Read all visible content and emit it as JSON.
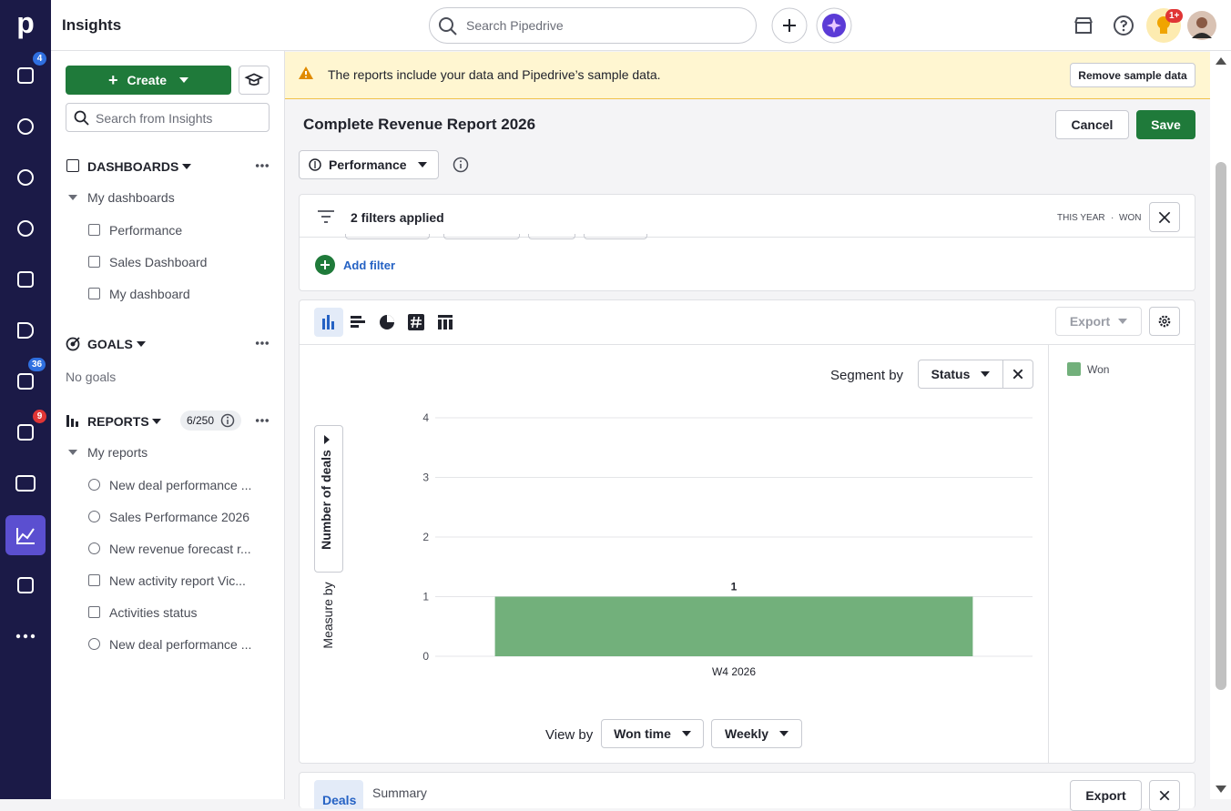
{
  "nav": {
    "logo": "p",
    "badges": [
      "4",
      "36",
      "9"
    ]
  },
  "header": {
    "title": "Insights",
    "search_placeholder": "Search Pipedrive",
    "notification_badge": "1+"
  },
  "sidebar": {
    "create": "Create",
    "search_placeholder": "Search from Insights",
    "dashboards": {
      "title": "DASHBOARDS",
      "group": "My dashboards",
      "items": [
        "Performance",
        "Sales Dashboard",
        "My dashboard"
      ]
    },
    "goals": {
      "title": "GOALS",
      "empty": "No goals"
    },
    "reports": {
      "title": "REPORTS",
      "count": "6/250",
      "group": "My reports",
      "items": [
        "New deal performance ...",
        "Sales Performance 2026",
        "New revenue forecast r...",
        "New activity report Vic...",
        "Activities status",
        "New deal performance ..."
      ]
    }
  },
  "banner": {
    "text": "The reports include your data and Pipedrive’s sample data.",
    "button": "Remove sample data"
  },
  "report": {
    "title": "Complete Revenue Report 2026",
    "cancel": "Cancel",
    "save": "Save",
    "dashboard_select": "Performance",
    "filters": {
      "summary": "2 filters applied",
      "tags": [
        "THIS YEAR",
        "WON"
      ],
      "add": "Add filter"
    },
    "export": "Export",
    "segment_label": "Segment by",
    "segment_value": "Status",
    "measure_label": "Measure by",
    "view_label": "View by",
    "view_field": "Won time",
    "view_interval": "Weekly",
    "tabs": [
      "Deals",
      "Summary"
    ],
    "table_export": "Export"
  },
  "chart_data": {
    "type": "bar",
    "y_label": "Number of deals",
    "categories": [
      "W4 2026"
    ],
    "series": [
      {
        "name": "Won",
        "color": "#72b07b",
        "values": [
          1
        ]
      }
    ],
    "ylim": [
      0,
      4
    ],
    "yticks": [
      0,
      1,
      2,
      3,
      4
    ],
    "grid": true,
    "legend": "right"
  }
}
